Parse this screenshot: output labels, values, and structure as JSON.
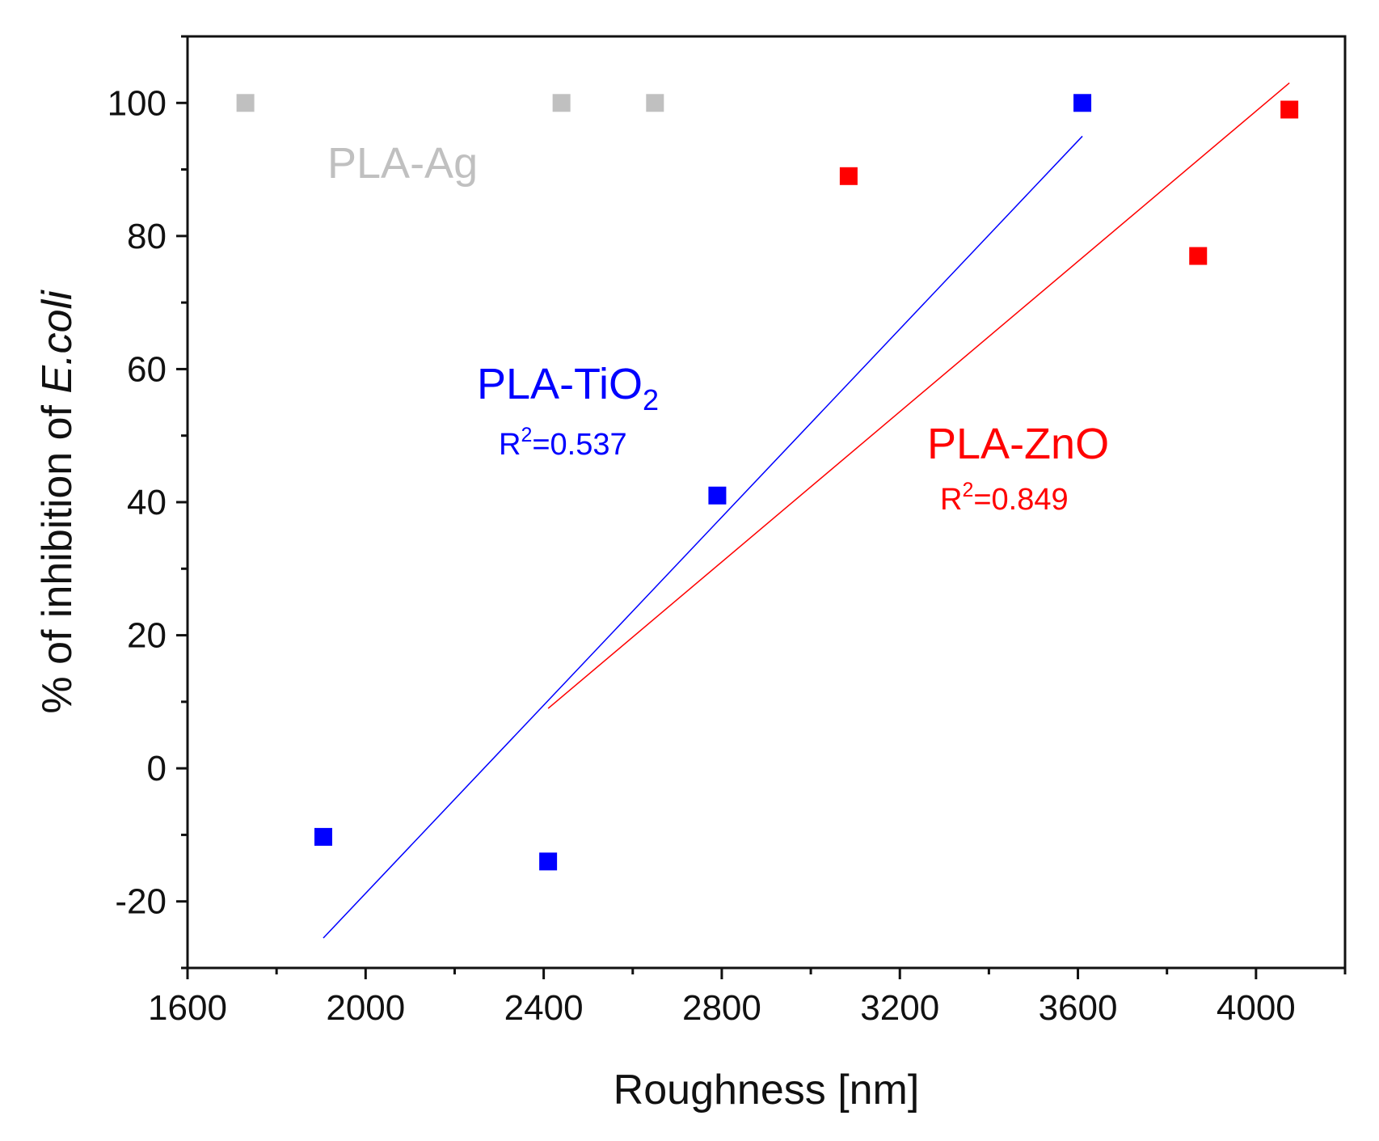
{
  "chart_data": {
    "type": "scatter",
    "title": "",
    "xlabel": "Roughness [nm]",
    "ylabel": {
      "prefix": "% of inhibition of ",
      "italic": "E.coli"
    },
    "xlim": [
      1600,
      4200
    ],
    "ylim": [
      -30,
      110
    ],
    "xticks": [
      1600,
      2000,
      2400,
      2800,
      3200,
      3600,
      4000
    ],
    "yticks": [
      -20,
      0,
      20,
      40,
      60,
      80,
      100
    ],
    "grid": false,
    "series": [
      {
        "name": "PLA-Ag",
        "color": "#c0c0c0",
        "label_text": "PLA-Ag",
        "points": [
          {
            "x": 1730,
            "y": 100
          },
          {
            "x": 2440,
            "y": 100
          },
          {
            "x": 2650,
            "y": 100
          }
        ],
        "fit": null
      },
      {
        "name": "PLA-TiO2",
        "color": "#0000ff",
        "label_main": "PLA-TiO",
        "label_sub": "2",
        "r2_prefix": "R",
        "r2_sup": "2",
        "r2_value": "=0.537",
        "points": [
          {
            "x": 1905,
            "y": -10.3
          },
          {
            "x": 2410,
            "y": -14
          },
          {
            "x": 2790,
            "y": 41
          },
          {
            "x": 3610,
            "y": 100
          }
        ],
        "fit": {
          "x": [
            1905,
            3610
          ],
          "y": [
            -25.5,
            95
          ]
        }
      },
      {
        "name": "PLA-ZnO",
        "color": "#ff0000",
        "label_text": "PLA-ZnO",
        "r2_prefix": "R",
        "r2_sup": "2",
        "r2_value": "=0.849",
        "points": [
          {
            "x": 3085,
            "y": 89
          },
          {
            "x": 3870,
            "y": 77
          },
          {
            "x": 4075,
            "y": 99
          }
        ],
        "fit": {
          "x": [
            2410,
            4075
          ],
          "y": [
            9,
            103
          ]
        }
      }
    ]
  }
}
